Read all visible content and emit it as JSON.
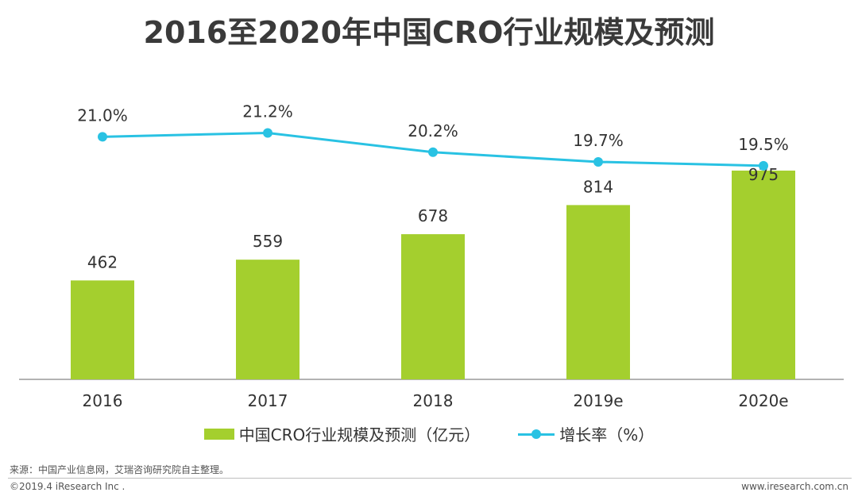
{
  "colors": {
    "bar": "#a4cf2e",
    "line": "#29c2e3",
    "axis": "#9a9a9a",
    "label": "#333333"
  },
  "chart_data": {
    "type": "bar",
    "title": "2016至2020年中国CRO行业规模及预测",
    "categories": [
      "2016",
      "2017",
      "2018",
      "2019e",
      "2020e"
    ],
    "series": [
      {
        "name": "中国CRO行业规模及预测（亿元）",
        "type": "bar",
        "values": [
          462,
          559,
          678,
          814,
          975
        ],
        "labels": [
          "462",
          "559",
          "678",
          "814",
          "975"
        ]
      },
      {
        "name": "增长率（%）",
        "type": "line",
        "values": [
          21.0,
          21.2,
          20.2,
          19.7,
          19.5
        ],
        "labels": [
          "21.0%",
          "21.2%",
          "20.2%",
          "19.7%",
          "19.5%"
        ]
      }
    ],
    "ylim_bar": [
      0,
      1000
    ],
    "ylim_line": [
      10,
      23
    ],
    "legend": "bottom"
  },
  "footer": {
    "source": "来源：中国产业信息网，艾瑞咨询研究院自主整理。",
    "copyright": "©2019.4 iResearch Inc .",
    "website": "www.iresearch.com.cn"
  }
}
